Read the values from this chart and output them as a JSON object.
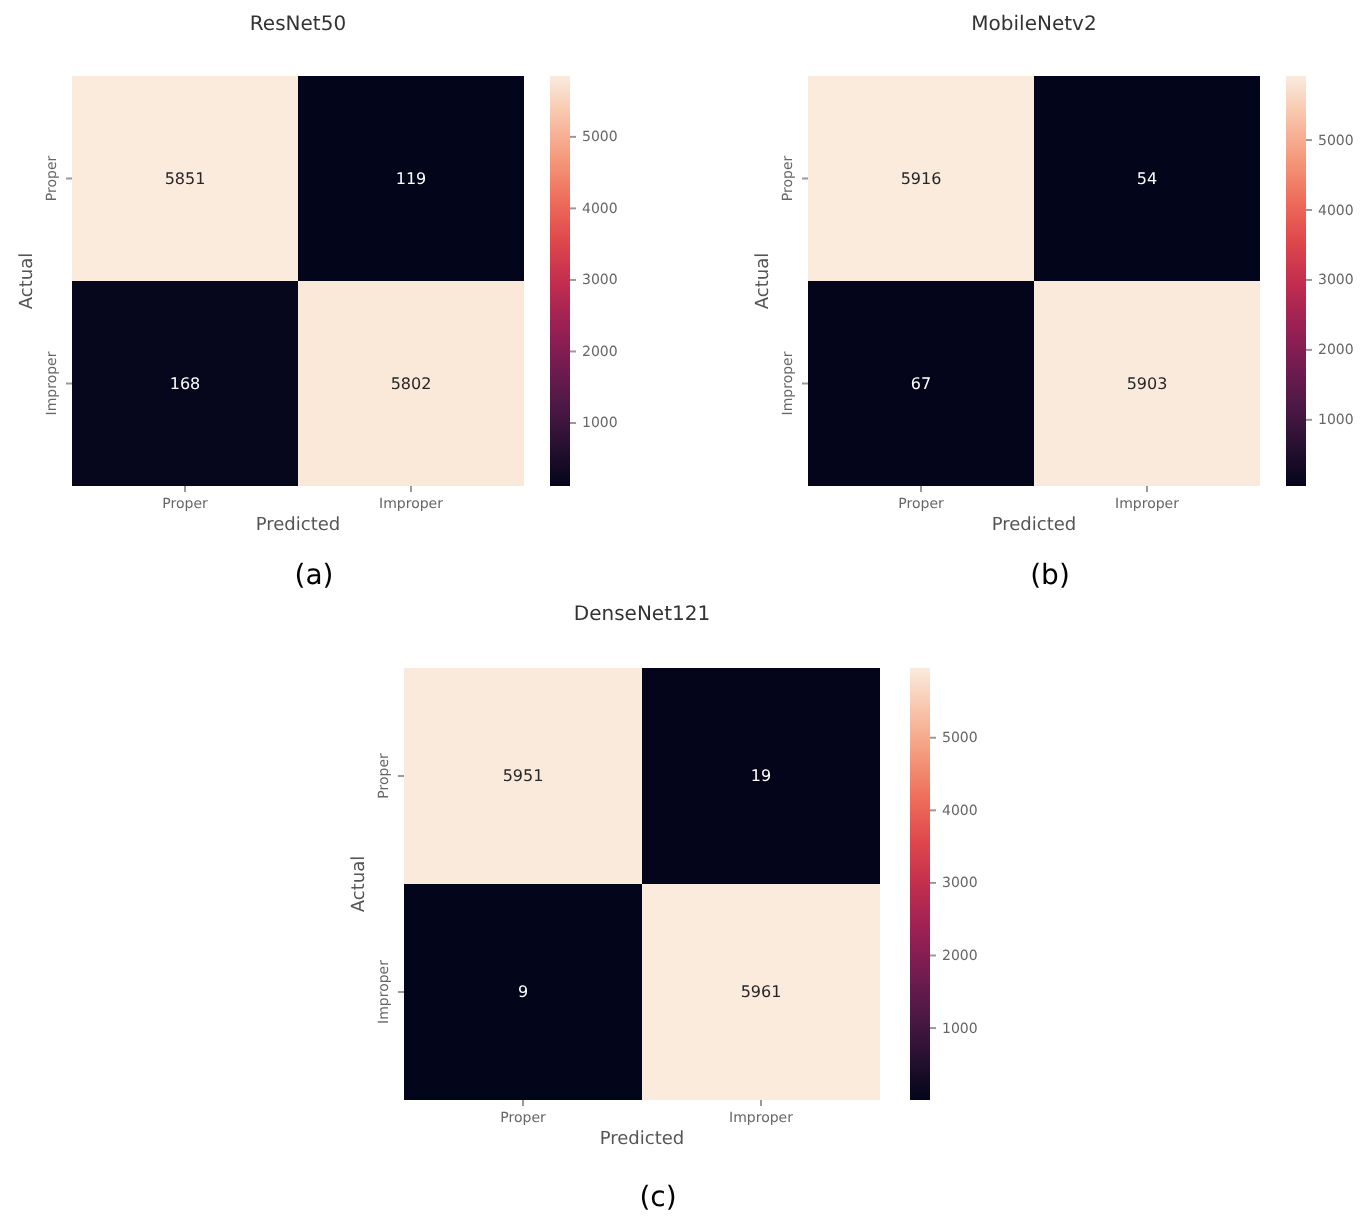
{
  "chart_data": [
    {
      "type": "heatmap",
      "title": "ResNet50",
      "xlabel": "Predicted",
      "ylabel": "Actual",
      "categories": [
        "Proper",
        "Improper"
      ],
      "y_categories": [
        "Proper",
        "Improper"
      ],
      "cells": [
        [
          5851,
          119
        ],
        [
          168,
          5802
        ]
      ],
      "data_labels": true,
      "clim": [
        119,
        5851
      ],
      "cticks": [
        1000,
        2000,
        3000,
        4000,
        5000
      ],
      "annotations": [
        "(a)"
      ]
    },
    {
      "type": "heatmap",
      "title": "MobileNetv2",
      "xlabel": "Predicted",
      "ylabel": "Actual",
      "categories": [
        "Proper",
        "Improper"
      ],
      "y_categories": [
        "Proper",
        "Improper"
      ],
      "cells": [
        [
          5916,
          54
        ],
        [
          67,
          5903
        ]
      ],
      "data_labels": true,
      "clim": [
        54,
        5916
      ],
      "cticks": [
        1000,
        2000,
        3000,
        4000,
        5000
      ],
      "annotations": [
        "(b)"
      ]
    },
    {
      "type": "heatmap",
      "title": "DenseNet121",
      "xlabel": "Predicted",
      "ylabel": "Actual",
      "categories": [
        "Proper",
        "Improper"
      ],
      "y_categories": [
        "Proper",
        "Improper"
      ],
      "cells": [
        [
          5951,
          19
        ],
        [
          9,
          5961
        ]
      ],
      "data_labels": true,
      "clim": [
        9,
        5961
      ],
      "cticks": [
        1000,
        2000,
        3000,
        4000,
        5000
      ],
      "annotations": [
        "(c)"
      ]
    }
  ]
}
